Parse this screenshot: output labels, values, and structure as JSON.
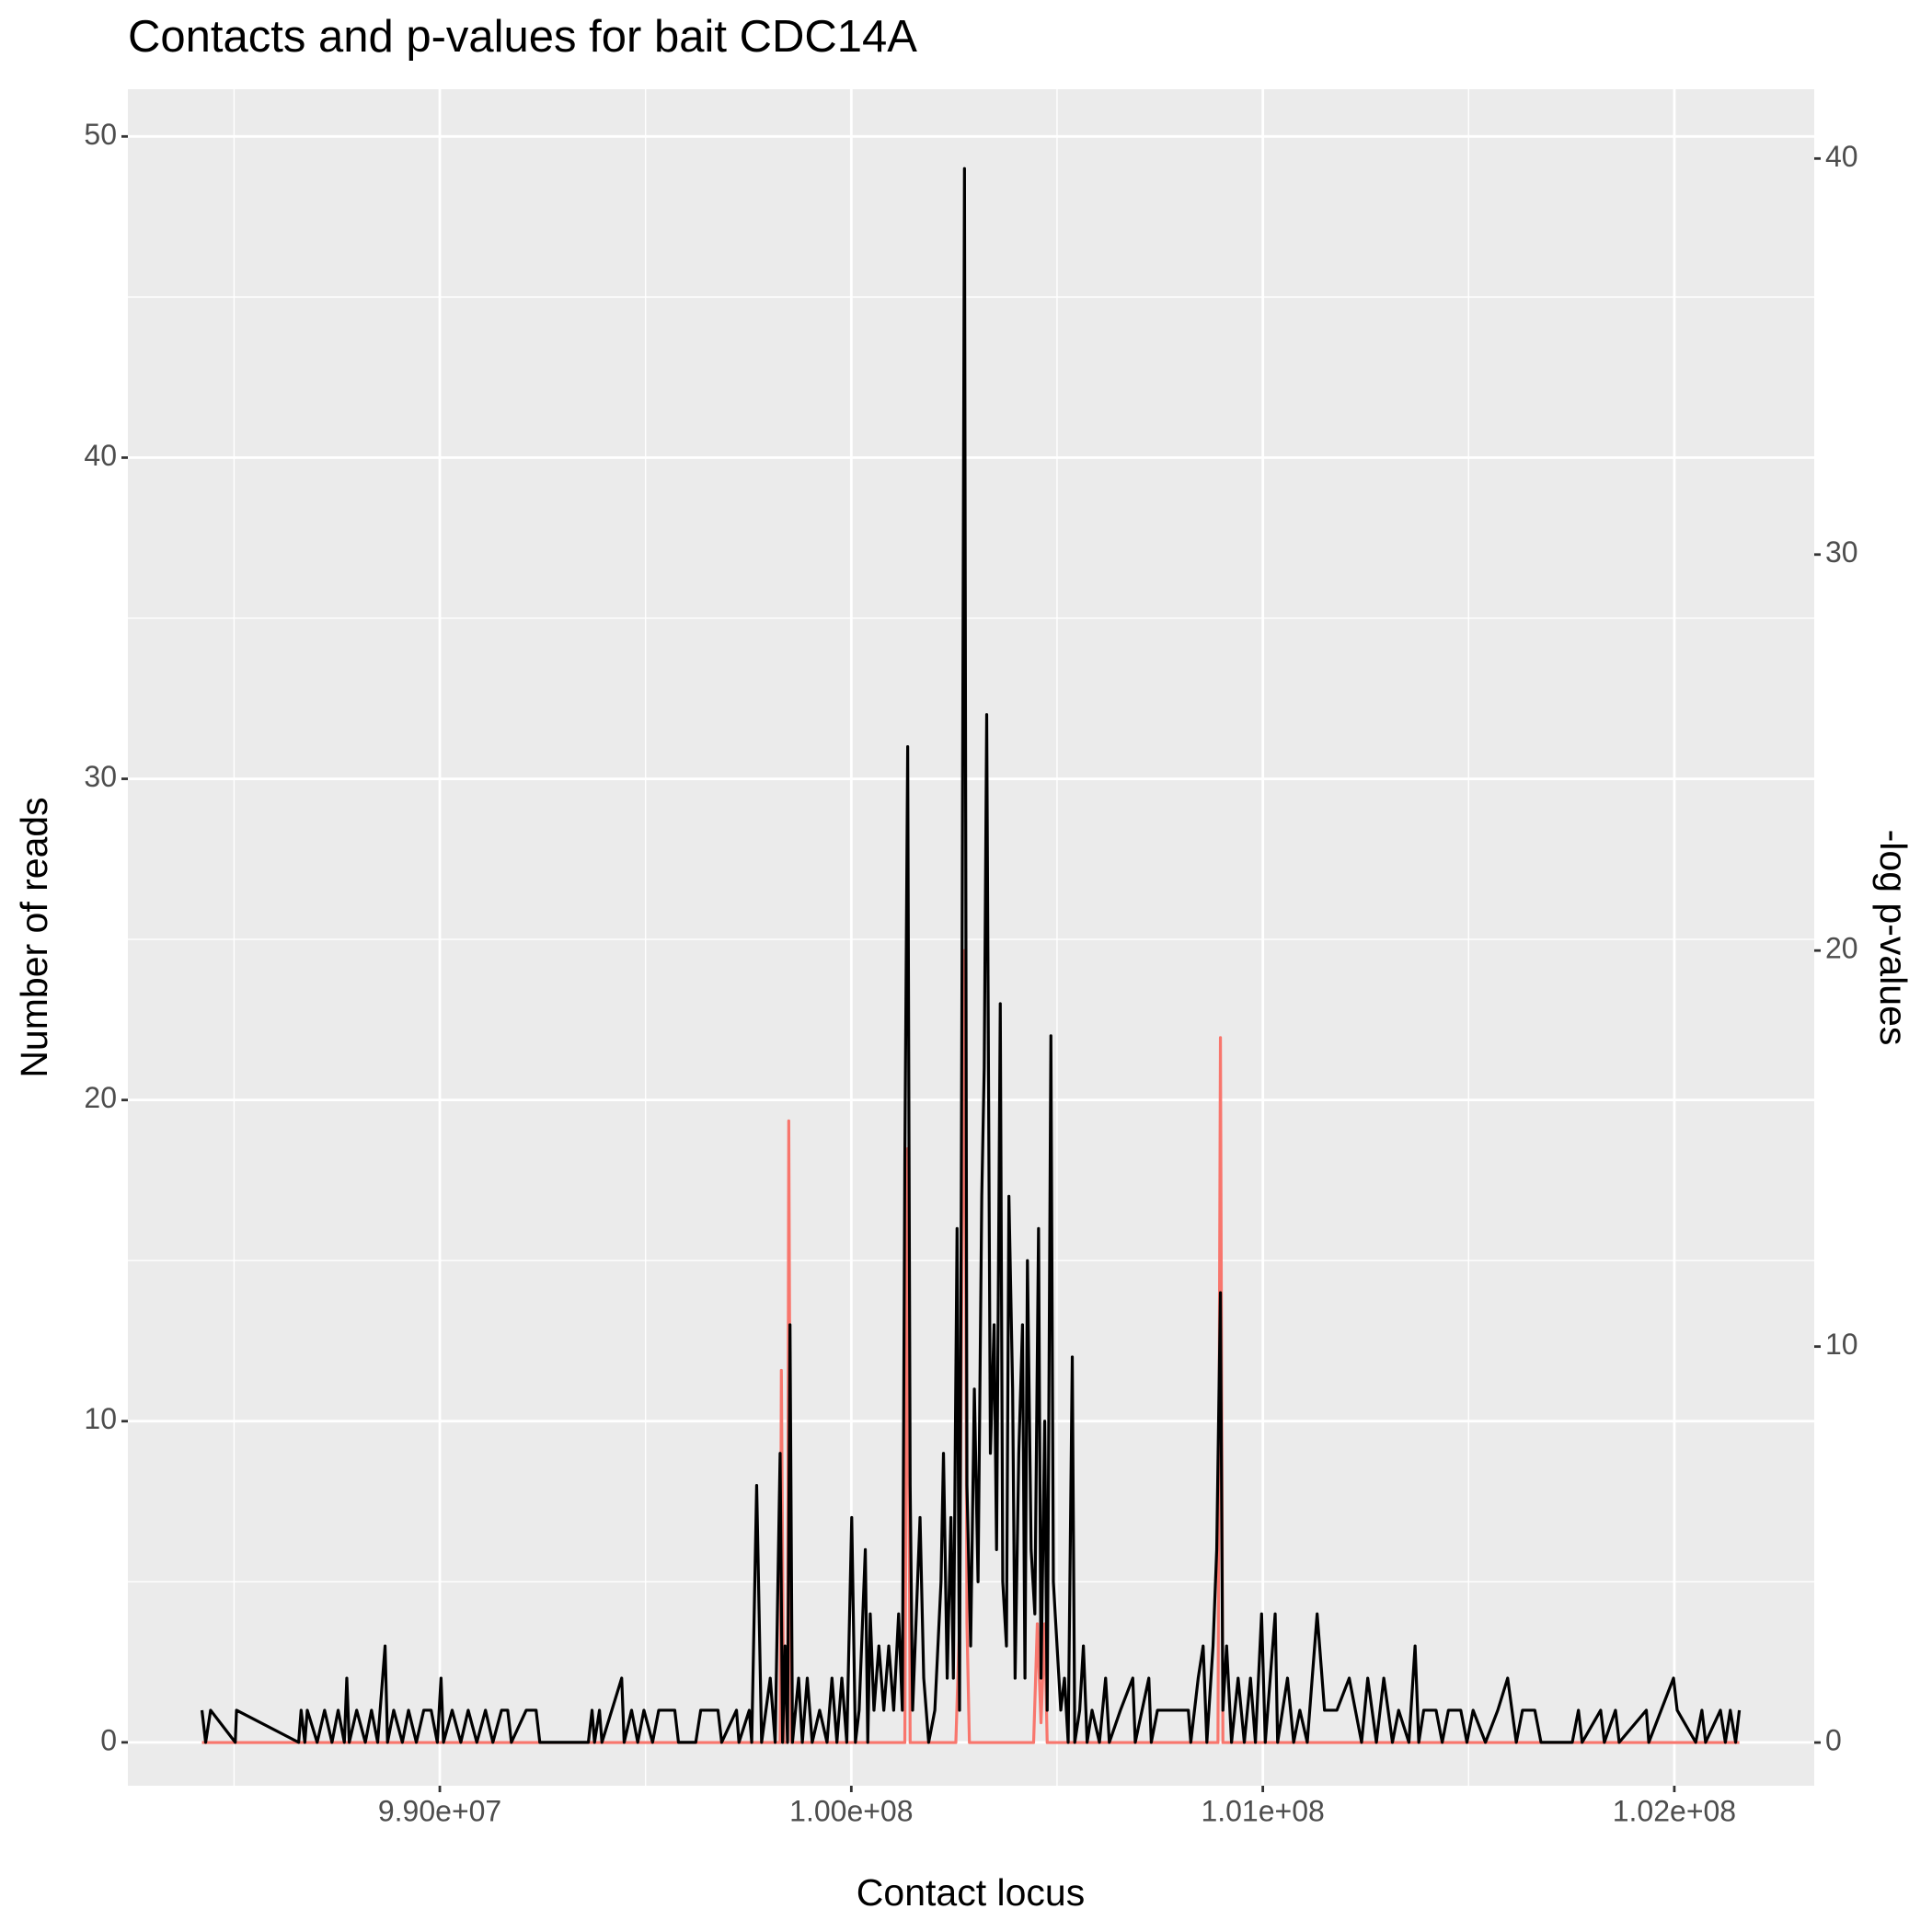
{
  "chart_data": {
    "type": "line",
    "title": "Contacts and p-values for bait CDC14A",
    "x_label": "Contact locus",
    "y_label": "Number of reads",
    "y2_label": "-log p-values",
    "xlim": [
      98242000,
      102340000
    ],
    "xticks": [
      {
        "value": 99000000,
        "label": "9.90e+07"
      },
      {
        "value": 100000000,
        "label": "1.00e+08"
      },
      {
        "value": 101000000,
        "label": "1.01e+08"
      },
      {
        "value": 102000000,
        "label": "1.02e+08"
      }
    ],
    "x_minor_grid": [
      98500000,
      99500000,
      100500000,
      101500000
    ],
    "ylim": [
      -1.35,
      51.47
    ],
    "yticks": [
      0,
      10,
      20,
      30,
      40,
      50
    ],
    "y_minor_grid": [
      5,
      15,
      25,
      35,
      45
    ],
    "y2lim": [
      -1.09,
      41.75
    ],
    "y2ticks": [
      0,
      10,
      20,
      30,
      40
    ],
    "grid": true,
    "series": [
      {
        "color": "#000000",
        "axis": "y",
        "x": [
          98422000,
          98431000,
          98443000,
          98503000,
          98506000,
          98657000,
          98663000,
          98672000,
          98678000,
          98702000,
          98720000,
          98738000,
          98753000,
          98768000,
          98774000,
          98780000,
          98798000,
          98819000,
          98834000,
          98849000,
          98867000,
          98873000,
          98888000,
          98909000,
          98924000,
          98943000,
          98961000,
          98979000,
          98994000,
          99003000,
          99009000,
          99030000,
          99051000,
          99069000,
          99090000,
          99111000,
          99129000,
          99150000,
          99165000,
          99174000,
          99210000,
          99234000,
          99243000,
          99361000,
          99370000,
          99376000,
          99388000,
          99394000,
          99442000,
          99448000,
          99466000,
          99481000,
          99496000,
          99517000,
          99532000,
          99571000,
          99580000,
          99622000,
          99634000,
          99676000,
          99685000,
          99721000,
          99727000,
          99752000,
          99758000,
          99770000,
          99782000,
          99803000,
          99815000,
          99827000,
          99833000,
          99839000,
          99845000,
          99851000,
          99857000,
          99872000,
          99881000,
          99893000,
          99905000,
          99923000,
          99941000,
          99953000,
          99965000,
          99977000,
          99989000,
          100001000,
          100010000,
          100019000,
          100034000,
          100040000,
          100046000,
          100055000,
          100067000,
          100079000,
          100091000,
          100103000,
          100115000,
          100124000,
          100130000,
          100137000,
          100143000,
          100149000,
          100158000,
          100167000,
          100176000,
          100188000,
          100203000,
          100218000,
          100224000,
          100233000,
          100242000,
          100248000,
          100257000,
          100263000,
          100269000,
          100275000,
          100281000,
          100290000,
          100299000,
          100308000,
          100317000,
          100323000,
          100329000,
          100338000,
          100347000,
          100353000,
          100362000,
          100368000,
          100377000,
          100383000,
          100392000,
          100398000,
          100407000,
          100416000,
          100422000,
          100428000,
          100437000,
          100446000,
          100455000,
          100461000,
          100470000,
          100476000,
          100485000,
          100491000,
          100500000,
          100509000,
          100518000,
          100527000,
          100537000,
          100543000,
          100555000,
          100564000,
          100573000,
          100585000,
          100603000,
          100618000,
          100627000,
          100654000,
          100684000,
          100690000,
          100723000,
          100729000,
          100744000,
          100819000,
          100825000,
          100843000,
          100855000,
          100864000,
          100879000,
          100888000,
          100897000,
          100903000,
          100912000,
          100924000,
          100940000,
          100955000,
          100970000,
          100982000,
          100997000,
          101006000,
          101018000,
          101030000,
          101036000,
          101060000,
          101075000,
          101090000,
          101108000,
          101132000,
          101150000,
          101180000,
          101210000,
          101240000,
          101255000,
          101276000,
          101294000,
          101315000,
          101330000,
          101355000,
          101370000,
          101379000,
          101391000,
          101421000,
          101436000,
          101451000,
          101481000,
          101496000,
          101511000,
          101541000,
          101571000,
          101595000,
          101616000,
          101631000,
          101661000,
          101676000,
          101752000,
          101767000,
          101776000,
          101821000,
          101830000,
          101857000,
          101866000,
          101932000,
          101938000,
          101998000,
          102007000,
          102052000,
          102067000,
          102076000,
          102112000,
          102124000,
          102136000,
          102149000,
          102158000
        ],
        "values": [
          1,
          0,
          1,
          0,
          1,
          0,
          1,
          0,
          1,
          0,
          1,
          0,
          1,
          0,
          2,
          0,
          1,
          0,
          1,
          0,
          3,
          0,
          1,
          0,
          1,
          0,
          1,
          1,
          0,
          2,
          0,
          1,
          0,
          1,
          0,
          1,
          0,
          1,
          1,
          0,
          1,
          1,
          0,
          0,
          1,
          0,
          1,
          0,
          2,
          0,
          1,
          0,
          1,
          0,
          1,
          1,
          0,
          0,
          1,
          1,
          0,
          1,
          0,
          1,
          0,
          8,
          0,
          2,
          0,
          9,
          0,
          3,
          0,
          13,
          0,
          2,
          0,
          2,
          0,
          1,
          0,
          2,
          0,
          2,
          0,
          7,
          0,
          1,
          6,
          0,
          4,
          1,
          3,
          1,
          3,
          1,
          4,
          1,
          18,
          31,
          8,
          1,
          4,
          7,
          2,
          0,
          1,
          5,
          9,
          2,
          7,
          2,
          16,
          1,
          24,
          49,
          8,
          3,
          11,
          5,
          17,
          21,
          32,
          9,
          13,
          6,
          23,
          5,
          3,
          17,
          11,
          2,
          9,
          13,
          2,
          15,
          6,
          4,
          16,
          2,
          10,
          1,
          22,
          5,
          3,
          1,
          2,
          0,
          12,
          0,
          1,
          3,
          0,
          1,
          0,
          2,
          0,
          1,
          2,
          0,
          2,
          0,
          1,
          1,
          0,
          2,
          3,
          0,
          3,
          6,
          14,
          1,
          3,
          0,
          2,
          0,
          2,
          0,
          4,
          0,
          2,
          4,
          0,
          2,
          0,
          1,
          0,
          4,
          1,
          1,
          2,
          0,
          2,
          0,
          2,
          0,
          1,
          0,
          3,
          0,
          1,
          1,
          0,
          1,
          1,
          0,
          1,
          0,
          1,
          2,
          0,
          1,
          1,
          0,
          0,
          1,
          0,
          1,
          0,
          1,
          0,
          1,
          0,
          2,
          1,
          0,
          1,
          0,
          1,
          0,
          1,
          0,
          1
        ]
      },
      {
        "color": "#f8766d",
        "axis": "y2",
        "x": [
          98422000,
          99827000,
          99830000,
          99836000,
          99845000,
          99848000,
          99854000,
          100130000,
          100137000,
          100143000,
          100254000,
          100263000,
          100269000,
          100275000,
          100281000,
          100287000,
          100443000,
          100452000,
          100461000,
          100470000,
          100476000,
          100891000,
          100897000,
          100903000,
          102158000
        ],
        "values": [
          0,
          0,
          9.4,
          0,
          0,
          15.7,
          0,
          0,
          15,
          0,
          0,
          3,
          12,
          20,
          3,
          0,
          0,
          3,
          0.5,
          3,
          0,
          0,
          17.8,
          0,
          0
        ]
      }
    ]
  }
}
